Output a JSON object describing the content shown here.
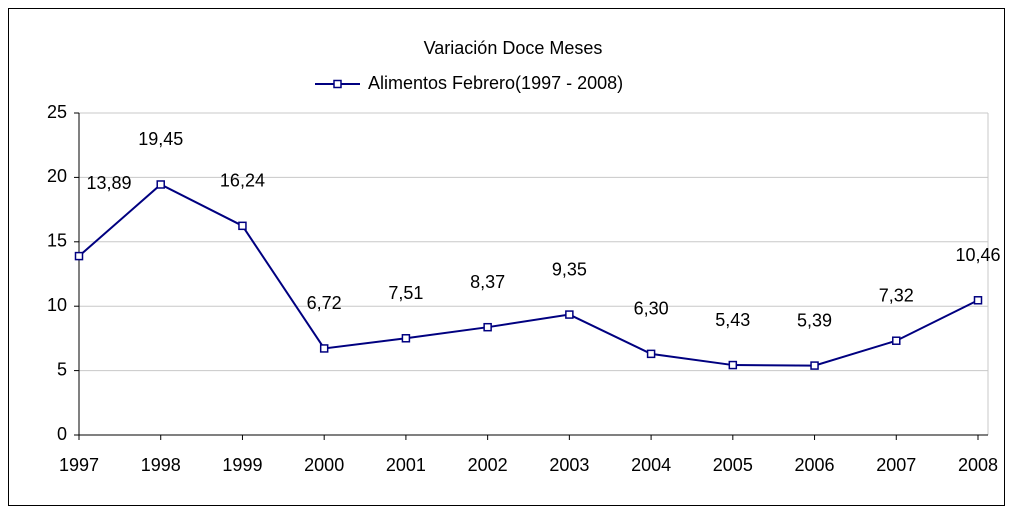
{
  "chart_data": {
    "type": "line",
    "title": "Variación Doce Meses",
    "categories": [
      "1997",
      "1998",
      "1999",
      "2000",
      "2001",
      "2002",
      "2003",
      "2004",
      "2005",
      "2006",
      "2007",
      "2008"
    ],
    "series": [
      {
        "name": "Alimentos Febrero(1997 - 2008)",
        "color": "#000080",
        "values": [
          13.89,
          19.45,
          16.24,
          6.72,
          7.51,
          8.37,
          9.35,
          6.3,
          5.43,
          5.39,
          7.32,
          10.46
        ],
        "value_labels": [
          "13,89",
          "19,45",
          "16,24",
          "6,72",
          "7,51",
          "8,37",
          "9,35",
          "6,30",
          "5,43",
          "5,39",
          "7,32",
          "10,46"
        ]
      }
    ],
    "ylim": [
      0,
      25
    ],
    "yticks": [
      0,
      5,
      10,
      15,
      20,
      25
    ],
    "grid": true,
    "legend": "top"
  }
}
